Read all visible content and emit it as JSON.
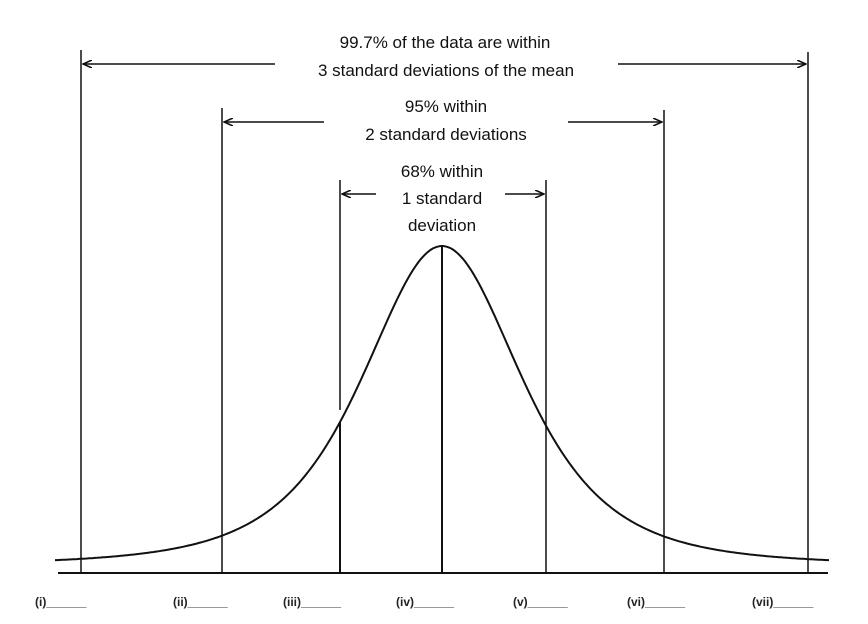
{
  "annotations": {
    "three_sd": {
      "line1": "99.7% of the data are within",
      "line2": "3 standard deviations of the mean"
    },
    "two_sd": {
      "line1": "95% within",
      "line2": "2 standard deviations"
    },
    "one_sd": {
      "line1": "68% within",
      "line2": "1 standard",
      "line3": "deviation"
    }
  },
  "blanks": [
    "(i)______",
    "(ii)______",
    "(iii)______",
    "(iv)______",
    "(v)______",
    "(vi)______",
    "(vii)______"
  ],
  "curve": {
    "type": "normal-distribution",
    "markers_sd": [
      -3,
      -2,
      -1,
      0,
      1,
      2,
      3
    ]
  },
  "colors": {
    "ink": "#111111",
    "background": "#ffffff"
  }
}
